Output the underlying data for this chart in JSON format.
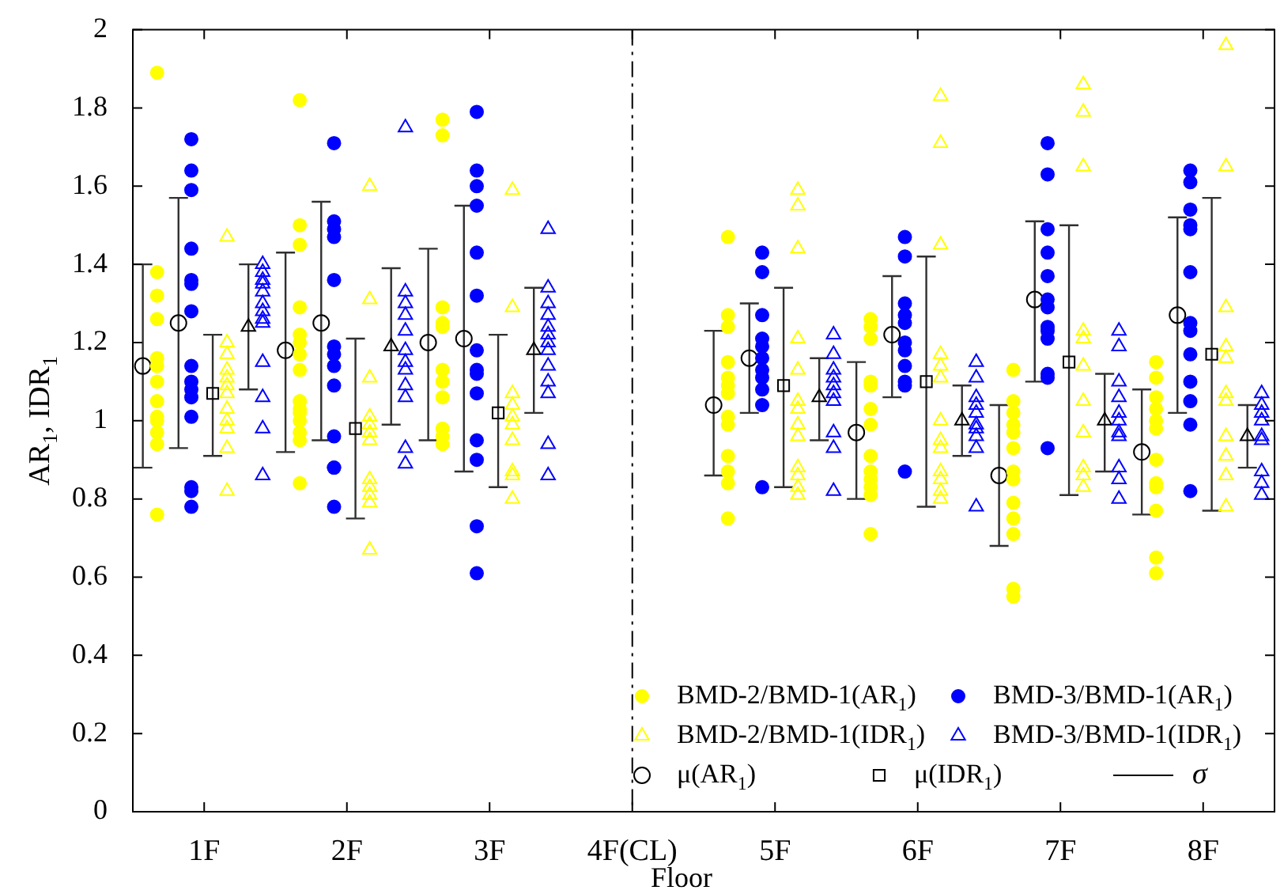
{
  "chart_data": {
    "type": "scatter",
    "xlabel": "Floor",
    "ylabel": "AR$_{1}$, IDR$_{1}$",
    "xlim": [
      0.5,
      8.5
    ],
    "ylim": [
      0,
      2
    ],
    "xticks": [
      {
        "value": 1,
        "label": "1F"
      },
      {
        "value": 2,
        "label": "2F"
      },
      {
        "value": 3,
        "label": "3F"
      },
      {
        "value": 4,
        "label": "4F(CL)"
      },
      {
        "value": 5,
        "label": "5F"
      },
      {
        "value": 6,
        "label": "6F"
      },
      {
        "value": 7,
        "label": "7F"
      },
      {
        "value": 8,
        "label": "8F"
      }
    ],
    "yticks": [
      0,
      0.2,
      0.4,
      0.6,
      0.8,
      1,
      1.2,
      1.4,
      1.6,
      1.8,
      2
    ],
    "grid": false,
    "legend": "bottom right",
    "ref_lines": [
      {
        "axis": "x",
        "value": 4,
        "color": "#000000",
        "line_style": "dashed"
      }
    ],
    "annotations": [
      "σ"
    ],
    "series": [
      {
        "name": "BMD-2/BMD-1(AR$_{1}$)",
        "color": "#ffff00",
        "marker": "circle",
        "x": [
          0.67,
          0.67,
          0.67,
          0.67,
          0.67,
          0.67,
          0.67,
          0.67,
          0.67,
          0.67,
          0.67,
          0.67,
          0.67,
          1.67,
          1.67,
          1.67,
          1.67,
          1.67,
          1.67,
          1.67,
          1.67,
          1.67,
          1.67,
          1.67,
          1.67,
          1.67,
          1.67,
          1.67,
          2.67,
          2.67,
          2.67,
          2.67,
          2.67,
          2.67,
          2.67,
          2.67,
          2.67,
          2.67,
          2.67,
          4.67,
          4.67,
          4.67,
          4.67,
          4.67,
          4.67,
          4.67,
          4.67,
          4.67,
          4.67,
          4.67,
          4.67,
          4.67,
          5.67,
          5.67,
          5.67,
          5.67,
          5.67,
          5.67,
          5.67,
          5.67,
          5.67,
          5.67,
          5.67,
          5.67,
          5.67,
          6.67,
          6.67,
          6.67,
          6.67,
          6.67,
          6.67,
          6.67,
          6.67,
          6.67,
          6.67,
          6.67,
          6.67,
          6.67,
          7.67,
          7.67,
          7.67,
          7.67,
          7.67,
          7.67,
          7.67,
          7.67,
          7.67,
          7.67,
          7.67,
          7.67
        ],
        "values": [
          1.89,
          1.38,
          1.32,
          1.26,
          1.16,
          1.14,
          1.1,
          1.05,
          1.01,
          1.0,
          0.97,
          0.94,
          0.76,
          1.82,
          1.5,
          1.45,
          1.29,
          1.22,
          1.2,
          1.17,
          1.13,
          1.05,
          1.03,
          1.02,
          1.0,
          0.97,
          0.95,
          0.84,
          1.77,
          1.73,
          1.29,
          1.25,
          1.24,
          1.13,
          1.1,
          1.06,
          0.98,
          0.96,
          0.94,
          1.47,
          1.27,
          1.24,
          1.15,
          1.11,
          1.09,
          1.07,
          1.01,
          0.99,
          0.91,
          0.87,
          0.84,
          0.75,
          1.26,
          1.24,
          1.21,
          1.1,
          1.09,
          1.03,
          0.99,
          0.91,
          0.87,
          0.85,
          0.83,
          0.81,
          0.71,
          1.13,
          1.05,
          1.02,
          0.99,
          0.97,
          0.93,
          0.87,
          0.85,
          0.79,
          0.75,
          0.71,
          0.57,
          0.55,
          1.15,
          1.11,
          1.06,
          1.03,
          1.0,
          0.98,
          0.9,
          0.84,
          0.83,
          0.77,
          0.65,
          0.61
        ]
      },
      {
        "name": "BMD-3/BMD-1(AR$_{1}$)",
        "color": "#0000ff",
        "marker": "circle",
        "x": [
          0.91,
          0.91,
          0.91,
          0.91,
          0.91,
          0.91,
          0.91,
          0.91,
          0.91,
          0.91,
          0.91,
          0.91,
          0.91,
          0.91,
          0.91,
          1.91,
          1.91,
          1.91,
          1.91,
          1.91,
          1.91,
          1.91,
          1.91,
          1.91,
          1.91,
          1.91,
          1.91,
          1.91,
          2.91,
          2.91,
          2.91,
          2.91,
          2.91,
          2.91,
          2.91,
          2.91,
          2.91,
          2.91,
          2.91,
          2.91,
          2.91,
          2.91,
          4.91,
          4.91,
          4.91,
          4.91,
          4.91,
          4.91,
          4.91,
          4.91,
          4.91,
          4.91,
          4.91,
          5.91,
          5.91,
          5.91,
          5.91,
          5.91,
          5.91,
          5.91,
          5.91,
          5.91,
          5.91,
          5.91,
          6.91,
          6.91,
          6.91,
          6.91,
          6.91,
          6.91,
          6.91,
          6.91,
          6.91,
          6.91,
          6.91,
          6.91,
          6.91,
          7.91,
          7.91,
          7.91,
          7.91,
          7.91,
          7.91,
          7.91,
          7.91,
          7.91,
          7.91,
          7.91,
          7.91,
          7.91
        ],
        "values": [
          1.72,
          1.64,
          1.59,
          1.44,
          1.36,
          1.35,
          1.28,
          1.14,
          1.1,
          1.08,
          1.06,
          1.01,
          0.83,
          0.82,
          0.78,
          1.71,
          1.51,
          1.49,
          1.47,
          1.36,
          1.19,
          1.17,
          1.14,
          1.09,
          0.96,
          0.88,
          0.88,
          0.78,
          1.79,
          1.64,
          1.6,
          1.55,
          1.43,
          1.32,
          1.18,
          1.13,
          1.12,
          1.07,
          0.95,
          0.9,
          0.73,
          0.61,
          1.43,
          1.38,
          1.27,
          1.21,
          1.19,
          1.16,
          1.13,
          1.11,
          1.08,
          1.04,
          0.83,
          1.47,
          1.42,
          1.3,
          1.27,
          1.25,
          1.2,
          1.18,
          1.14,
          1.1,
          1.09,
          0.87,
          1.71,
          1.63,
          1.49,
          1.43,
          1.37,
          1.31,
          1.29,
          1.24,
          1.23,
          1.21,
          1.12,
          1.11,
          0.93,
          1.64,
          1.61,
          1.54,
          1.5,
          1.49,
          1.38,
          1.25,
          1.23,
          1.17,
          1.1,
          1.05,
          0.99,
          0.82
        ]
      },
      {
        "name": "BMD-2/BMD-1(IDR$_{1}$)",
        "color": "#ffff00",
        "marker": "triangle",
        "x": [
          1.16,
          1.16,
          1.16,
          1.16,
          1.16,
          1.16,
          1.16,
          1.16,
          1.16,
          1.16,
          1.16,
          1.16,
          2.16,
          2.16,
          2.16,
          2.16,
          2.16,
          2.16,
          2.16,
          2.16,
          2.16,
          2.16,
          2.16,
          2.16,
          3.16,
          3.16,
          3.16,
          3.16,
          3.16,
          3.16,
          3.16,
          3.16,
          3.16,
          3.16,
          5.16,
          5.16,
          5.16,
          5.16,
          5.16,
          5.16,
          5.16,
          5.16,
          5.16,
          5.16,
          5.16,
          5.16,
          5.16,
          6.16,
          6.16,
          6.16,
          6.16,
          6.16,
          6.16,
          6.16,
          6.16,
          6.16,
          6.16,
          6.16,
          6.16,
          6.16,
          7.16,
          7.16,
          7.16,
          7.16,
          7.16,
          7.16,
          7.16,
          7.16,
          7.16,
          7.16,
          7.16,
          8.16,
          8.16,
          8.16,
          8.16,
          8.16,
          8.16,
          8.16,
          8.16,
          8.16,
          8.16,
          8.16
        ],
        "values": [
          1.47,
          1.2,
          1.17,
          1.13,
          1.11,
          1.09,
          1.07,
          1.03,
          1.0,
          0.98,
          0.93,
          0.82,
          1.6,
          1.31,
          1.11,
          1.01,
          0.99,
          0.97,
          0.95,
          0.85,
          0.83,
          0.81,
          0.79,
          0.67,
          1.59,
          1.29,
          1.07,
          1.04,
          1.01,
          0.99,
          0.95,
          0.87,
          0.86,
          0.8,
          1.59,
          1.55,
          1.44,
          1.21,
          1.13,
          1.05,
          1.03,
          0.99,
          0.96,
          0.88,
          0.86,
          0.83,
          0.81,
          1.83,
          1.71,
          1.45,
          1.17,
          1.14,
          1.11,
          1.0,
          0.95,
          0.93,
          0.87,
          0.85,
          0.82,
          0.8,
          1.86,
          1.79,
          1.65,
          1.23,
          1.21,
          1.14,
          1.05,
          0.97,
          0.88,
          0.86,
          0.83,
          1.96,
          1.65,
          1.29,
          1.19,
          1.16,
          1.07,
          1.05,
          0.96,
          0.91,
          0.86,
          0.78
        ]
      },
      {
        "name": "BMD-3/BMD-1(IDR$_{1}$)",
        "color": "#0000ff",
        "marker": "triangle",
        "x": [
          1.41,
          1.41,
          1.41,
          1.41,
          1.41,
          1.41,
          1.41,
          1.41,
          1.41,
          1.41,
          1.41,
          1.41,
          1.41,
          2.41,
          2.41,
          2.41,
          2.41,
          2.41,
          2.41,
          2.41,
          2.41,
          2.41,
          2.41,
          2.41,
          2.41,
          3.41,
          3.41,
          3.41,
          3.41,
          3.41,
          3.41,
          3.41,
          3.41,
          3.41,
          3.41,
          3.41,
          3.41,
          3.41,
          5.41,
          5.41,
          5.41,
          5.41,
          5.41,
          5.41,
          5.41,
          5.41,
          5.41,
          5.41,
          6.41,
          6.41,
          6.41,
          6.41,
          6.41,
          6.41,
          6.41,
          6.41,
          6.41,
          6.41,
          7.41,
          7.41,
          7.41,
          7.41,
          7.41,
          7.41,
          7.41,
          7.41,
          7.41,
          7.41,
          7.41,
          8.41,
          8.41,
          8.41,
          8.41,
          8.41,
          8.41,
          8.41,
          8.41,
          8.41
        ],
        "values": [
          1.4,
          1.38,
          1.36,
          1.35,
          1.33,
          1.3,
          1.28,
          1.26,
          1.25,
          1.15,
          1.06,
          0.98,
          0.86,
          1.75,
          1.33,
          1.3,
          1.27,
          1.23,
          1.18,
          1.15,
          1.13,
          1.09,
          1.06,
          0.93,
          0.89,
          1.49,
          1.34,
          1.3,
          1.27,
          1.24,
          1.22,
          1.2,
          1.18,
          1.14,
          1.1,
          1.07,
          0.94,
          0.86,
          1.22,
          1.17,
          1.13,
          1.11,
          1.09,
          1.07,
          1.05,
          0.97,
          0.93,
          0.82,
          1.15,
          1.11,
          1.06,
          1.04,
          1.02,
          0.99,
          0.98,
          0.96,
          0.93,
          0.78,
          1.23,
          1.19,
          1.1,
          1.06,
          1.02,
          1.0,
          0.97,
          0.96,
          0.88,
          0.85,
          0.8,
          1.07,
          1.04,
          1.02,
          1.0,
          0.96,
          0.95,
          0.87,
          0.84,
          0.81
        ]
      },
      {
        "name": "μ(AR$_{1}$)",
        "color": "#000000",
        "marker": "circle",
        "x": [
          0.57,
          1.57,
          2.57,
          4.57,
          5.57,
          6.57,
          7.57,
          0.82,
          1.82,
          2.82,
          4.82,
          5.82,
          6.82,
          7.82
        ],
        "values": [
          1.14,
          1.18,
          1.2,
          1.04,
          0.97,
          0.86,
          0.92,
          1.25,
          1.25,
          1.21,
          1.16,
          1.22,
          1.31,
          1.27
        ],
        "errors": [
          [
            0.88,
            1.4
          ],
          [
            0.92,
            1.43
          ],
          [
            0.95,
            1.44
          ],
          [
            0.86,
            1.23
          ],
          [
            0.8,
            1.15
          ],
          [
            0.68,
            1.04
          ],
          [
            0.76,
            1.08
          ],
          [
            0.93,
            1.57
          ],
          [
            0.95,
            1.56
          ],
          [
            0.87,
            1.55
          ],
          [
            1.02,
            1.3
          ],
          [
            1.06,
            1.37
          ],
          [
            1.1,
            1.51
          ],
          [
            1.02,
            1.52
          ]
        ]
      },
      {
        "name": "μ(IDR$_{1}$)",
        "color": "#000000",
        "marker": "square",
        "x": [
          1.06,
          2.06,
          3.06,
          5.06,
          6.06,
          7.06,
          8.06
        ],
        "values": [
          1.07,
          0.98,
          1.02,
          1.09,
          1.1,
          1.15,
          1.17
        ],
        "errors": [
          [
            0.91,
            1.22
          ],
          [
            0.75,
            1.21
          ],
          [
            0.83,
            1.22
          ],
          [
            0.83,
            1.34
          ],
          [
            0.78,
            1.42
          ],
          [
            0.81,
            1.5
          ],
          [
            0.77,
            1.57
          ]
        ]
      },
      {
        "color": "#000000",
        "marker": "triangle",
        "x": [
          1.31,
          2.31,
          3.31,
          5.31,
          6.31,
          7.31,
          8.31
        ],
        "values": [
          1.24,
          1.19,
          1.18,
          1.06,
          1.0,
          1.0,
          0.96
        ],
        "errors": [
          [
            1.08,
            1.4
          ],
          [
            0.99,
            1.39
          ],
          [
            1.02,
            1.34
          ],
          [
            0.95,
            1.16
          ],
          [
            0.91,
            1.09
          ],
          [
            0.87,
            1.12
          ],
          [
            0.88,
            1.04
          ]
        ]
      }
    ]
  }
}
